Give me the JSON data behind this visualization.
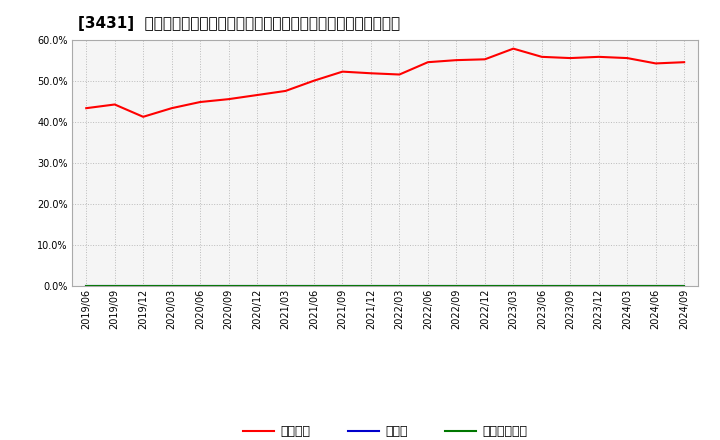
{
  "title": "[3431]  自己資本、のれん、繰延税金資産の総資産に対する比率の推移",
  "x_labels": [
    "2019/06",
    "2019/09",
    "2019/12",
    "2020/03",
    "2020/06",
    "2020/09",
    "2020/12",
    "2021/03",
    "2021/06",
    "2021/09",
    "2021/12",
    "2022/03",
    "2022/06",
    "2022/09",
    "2022/12",
    "2023/03",
    "2023/06",
    "2023/09",
    "2023/12",
    "2024/03",
    "2024/06",
    "2024/09"
  ],
  "jikoshihon": [
    43.3,
    44.2,
    41.2,
    43.3,
    44.8,
    45.5,
    46.5,
    47.5,
    50.0,
    52.2,
    51.8,
    51.5,
    54.5,
    55.0,
    55.2,
    57.8,
    55.8,
    55.5,
    55.8,
    55.5,
    54.2,
    54.5
  ],
  "noren": [
    0.0,
    0.0,
    0.0,
    0.0,
    0.0,
    0.0,
    0.0,
    0.0,
    0.0,
    0.0,
    0.0,
    0.0,
    0.0,
    0.0,
    0.0,
    0.0,
    0.0,
    0.0,
    0.0,
    0.0,
    0.0,
    0.0
  ],
  "kurinobe": [
    0.0,
    0.0,
    0.0,
    0.0,
    0.0,
    0.0,
    0.0,
    0.0,
    0.0,
    0.0,
    0.0,
    0.0,
    0.0,
    0.0,
    0.0,
    0.0,
    0.0,
    0.0,
    0.0,
    0.0,
    0.0,
    0.0
  ],
  "jikoshihon_color": "#ff0000",
  "noren_color": "#0000cc",
  "kurinobe_color": "#007700",
  "ylim": [
    0,
    60
  ],
  "yticks": [
    0,
    10,
    20,
    30,
    40,
    50,
    60
  ],
  "background_color": "#ffffff",
  "plot_bg_color": "#f5f5f5",
  "grid_color": "#bbbbbb",
  "legend_jiko": "自己資本",
  "legend_noren": "のれん",
  "legend_kurinobe": "繰延税金資産",
  "title_fontsize": 11,
  "tick_fontsize": 7,
  "legend_fontsize": 9
}
